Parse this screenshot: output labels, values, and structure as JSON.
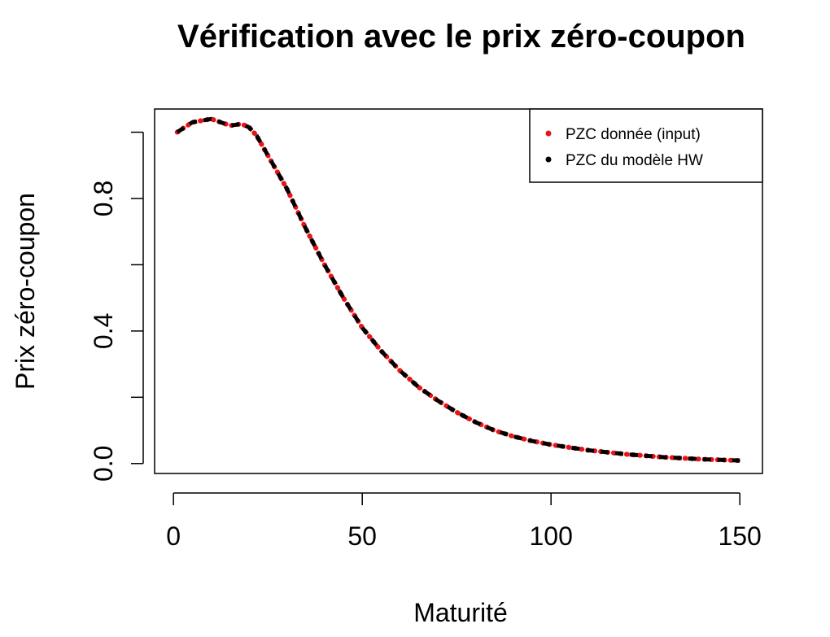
{
  "chart_data": {
    "type": "line",
    "title": "Vérification avec le prix zéro-coupon",
    "xlabel": "Maturité",
    "ylabel": "Prix zéro-coupon",
    "xlim": [
      -5,
      156
    ],
    "ylim": [
      -0.03,
      1.07
    ],
    "xticks": [
      0,
      50,
      100,
      150
    ],
    "xtick_labels": [
      "0",
      "50",
      "100",
      "150"
    ],
    "yticks": [
      0.0,
      0.2,
      0.4,
      0.6,
      0.8,
      1.0
    ],
    "ytick_labels": [
      "0.0",
      "",
      "0.4",
      "",
      "0.8",
      ""
    ],
    "grid": false,
    "legend_position": "top-right",
    "x": [
      1,
      5,
      10,
      15,
      18,
      20,
      22,
      25,
      30,
      35,
      40,
      45,
      50,
      55,
      60,
      65,
      70,
      75,
      80,
      85,
      90,
      95,
      100,
      110,
      120,
      130,
      140,
      150
    ],
    "series": [
      {
        "name": "PZC donnée (input)",
        "color": "#e8141a",
        "style": "dotted",
        "values": [
          1.0,
          1.03,
          1.04,
          1.02,
          1.025,
          1.015,
          0.99,
          0.93,
          0.83,
          0.71,
          0.6,
          0.5,
          0.41,
          0.34,
          0.28,
          0.23,
          0.19,
          0.155,
          0.125,
          0.1,
          0.082,
          0.068,
          0.057,
          0.04,
          0.028,
          0.019,
          0.013,
          0.009
        ]
      },
      {
        "name": "PZC du modèle HW",
        "color": "#000000",
        "style": "dashed",
        "values": [
          1.0,
          1.03,
          1.04,
          1.02,
          1.025,
          1.015,
          0.99,
          0.93,
          0.83,
          0.71,
          0.6,
          0.5,
          0.41,
          0.34,
          0.28,
          0.23,
          0.19,
          0.155,
          0.125,
          0.1,
          0.082,
          0.068,
          0.057,
          0.04,
          0.028,
          0.019,
          0.013,
          0.009
        ]
      }
    ]
  }
}
